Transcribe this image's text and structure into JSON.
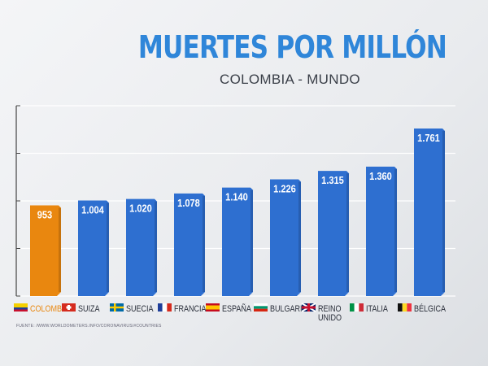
{
  "chart_data": {
    "type": "bar",
    "title": "MUERTES POR MILLÓN",
    "subtitle": "COLOMBIA - MUNDO",
    "categories": [
      "COLOMBIA",
      "SUIZA",
      "SUECIA",
      "FRANCIA",
      "ESPAÑA",
      "BULGARIA",
      "REINO UNIDO",
      "ITALIA",
      "BÉLGICA"
    ],
    "values": [
      953,
      1004,
      1020,
      1078,
      1140,
      1226,
      1315,
      1360,
      1761
    ],
    "labels": [
      "953",
      "1.004",
      "1.020",
      "1.078",
      "1.140",
      "1.226",
      "1.315",
      "1.360",
      "1.761"
    ],
    "flags": [
      "colombia-flag",
      "switzerland-flag",
      "sweden-flag",
      "france-flag",
      "spain-flag",
      "bulgaria-flag",
      "uk-flag",
      "italy-flag",
      "belgium-flag"
    ],
    "highlight_color": "#e9870f",
    "bar_color": "#2e6fd0",
    "ylim": [
      0,
      2000
    ],
    "grid": true,
    "xlabel": "",
    "ylabel": ""
  },
  "source": "FUENTE: /WWW.WORLDOMETERS.INFO/CORONAVIRUS/#COUNTRIES"
}
